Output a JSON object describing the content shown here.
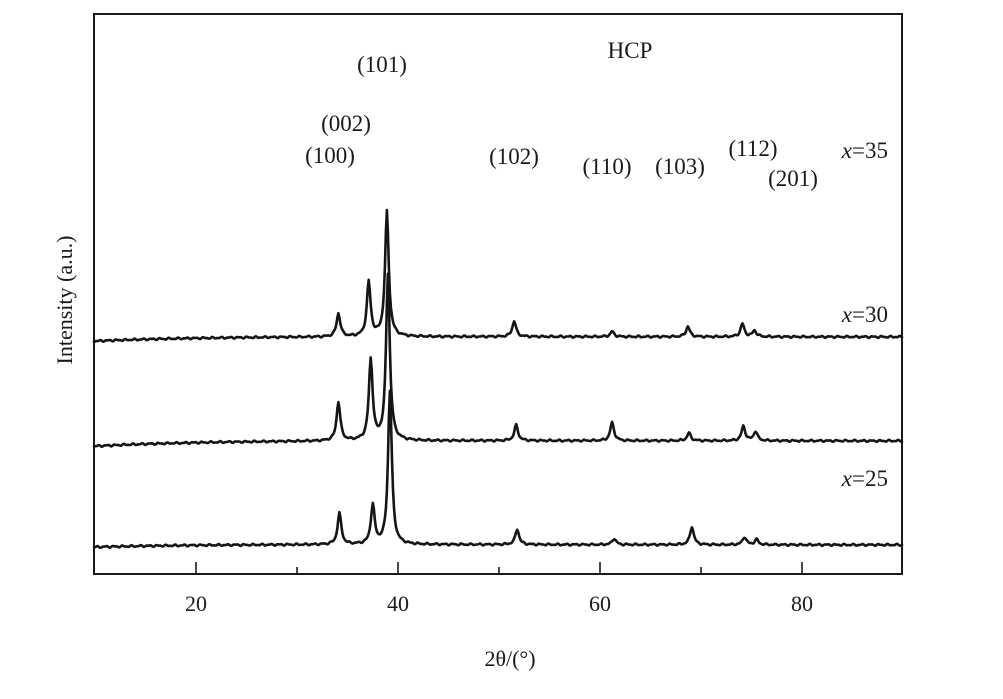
{
  "chart_data": {
    "type": "line",
    "title": "",
    "phase_label": "HCP",
    "xlabel": "2θ/(°)",
    "ylabel": "Intensity (a.u.)",
    "xlim": [
      10,
      90
    ],
    "x_ticks": [
      20,
      40,
      60,
      80
    ],
    "x_tick_labels": [
      "20",
      "40",
      "60",
      "80"
    ],
    "grid": false,
    "y_ticks": false,
    "series": [
      {
        "name": "x=35",
        "baseline_intensity": 4.0,
        "background_slope": -0.3,
        "peaks": [
          {
            "two_theta": 34.2,
            "intensity": 0.45,
            "hkl": "(100)"
          },
          {
            "two_theta": 37.2,
            "intensity": 1.05,
            "hkl": "(002)"
          },
          {
            "two_theta": 39.0,
            "intensity": 2.4,
            "hkl": "(101)"
          },
          {
            "two_theta": 51.6,
            "intensity": 0.3,
            "hkl": "(102)"
          },
          {
            "two_theta": 61.3,
            "intensity": 0.1,
            "hkl": "(110)"
          },
          {
            "two_theta": 68.8,
            "intensity": 0.2,
            "hkl": "(103)"
          },
          {
            "two_theta": 74.2,
            "intensity": 0.25,
            "hkl": "(112)"
          },
          {
            "two_theta": 75.4,
            "intensity": 0.12,
            "hkl": "(201)"
          }
        ]
      },
      {
        "name": "x=30",
        "baseline_intensity": 2.0,
        "background_slope": -0.35,
        "peaks": [
          {
            "two_theta": 34.2,
            "intensity": 0.75,
            "hkl": "(100)"
          },
          {
            "two_theta": 37.4,
            "intensity": 1.55,
            "hkl": "(002)"
          },
          {
            "two_theta": 39.1,
            "intensity": 3.2,
            "hkl": "(101)"
          },
          {
            "two_theta": 51.8,
            "intensity": 0.3,
            "hkl": "(102)"
          },
          {
            "two_theta": 61.3,
            "intensity": 0.35,
            "hkl": "(110)"
          },
          {
            "two_theta": 68.9,
            "intensity": 0.15,
            "hkl": "(103)"
          },
          {
            "two_theta": 74.3,
            "intensity": 0.28,
            "hkl": "(112)"
          },
          {
            "two_theta": 75.5,
            "intensity": 0.18,
            "hkl": "(201)"
          }
        ]
      },
      {
        "name": "x=25",
        "baseline_intensity": 0.0,
        "background_slope": -0.2,
        "peaks": [
          {
            "two_theta": 34.3,
            "intensity": 0.6,
            "hkl": "(100)"
          },
          {
            "two_theta": 37.6,
            "intensity": 0.75,
            "hkl": "(002)"
          },
          {
            "two_theta": 39.3,
            "intensity": 2.95,
            "hkl": "(101)"
          },
          {
            "two_theta": 51.9,
            "intensity": 0.3,
            "hkl": "(102)"
          },
          {
            "two_theta": 61.5,
            "intensity": 0.12,
            "hkl": "(110)"
          },
          {
            "two_theta": 69.2,
            "intensity": 0.35,
            "hkl": "(103)"
          },
          {
            "two_theta": 74.4,
            "intensity": 0.15,
            "hkl": "(112)"
          },
          {
            "two_theta": 75.6,
            "intensity": 0.1,
            "hkl": "(201)"
          }
        ]
      }
    ],
    "annotations": [
      "(100)",
      "(002)",
      "(101)",
      "(102)",
      "(110)",
      "(103)",
      "(112)",
      "(201)"
    ]
  }
}
